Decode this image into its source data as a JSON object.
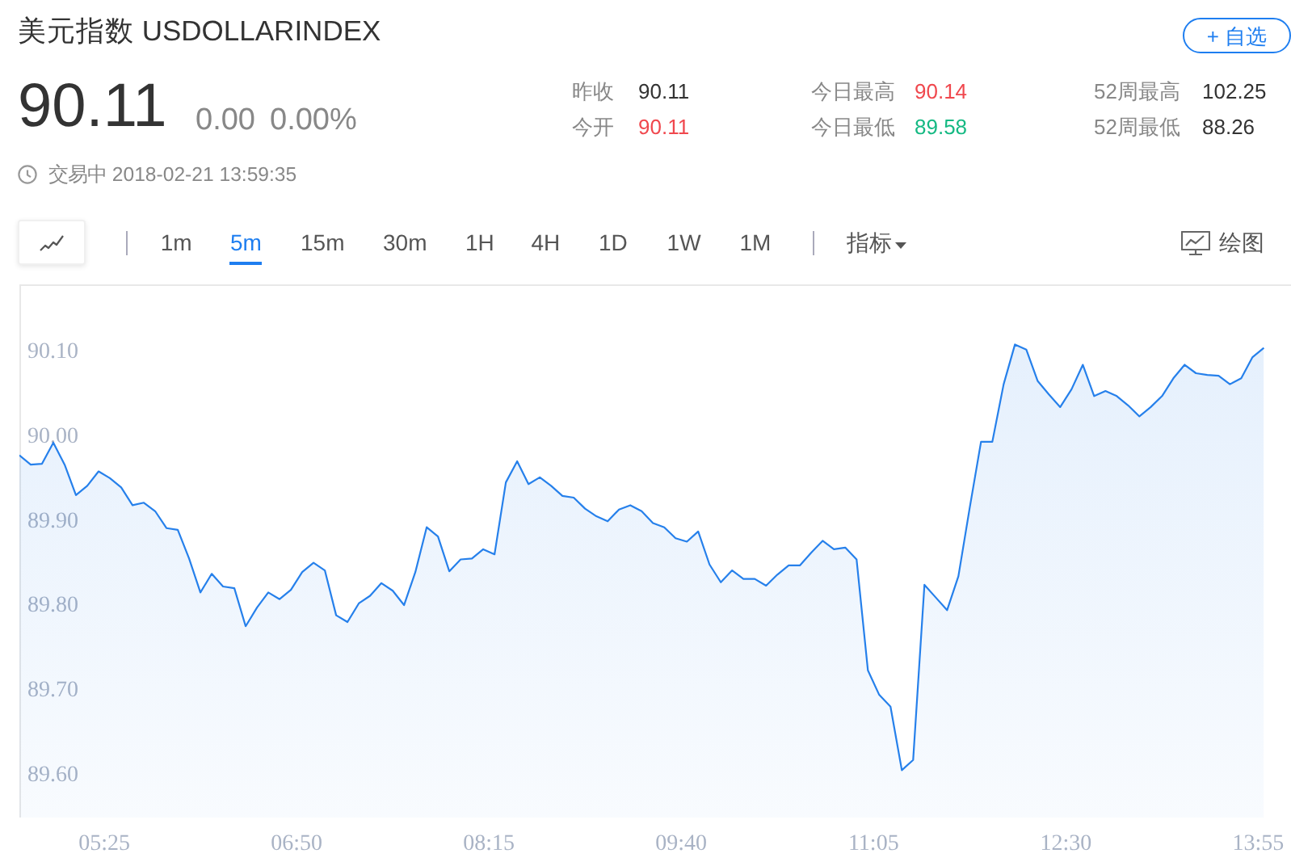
{
  "chart_data": {
    "type": "area",
    "title": "美元指数 USDOLLARINDEX",
    "annotations": [
      "90.11",
      "0.00",
      "0.00%",
      "昨收",
      "90.11",
      "今开",
      "90.11",
      "今日最高",
      "90.14",
      "今日最低",
      "89.58",
      "52周最高",
      "102.25",
      "52周最低",
      "88.26",
      "交易中 2018-02-21 13:59:35",
      "+ 自选",
      "1m",
      "5m",
      "15m",
      "30m",
      "1H",
      "4H",
      "1D",
      "1W",
      "1M",
      "指标",
      "绘图"
    ],
    "x": [
      4.7917,
      4.875,
      4.9583,
      5.0417,
      5.125,
      5.2083,
      5.2917,
      5.375,
      5.4583,
      5.5417,
      5.625,
      5.7083,
      5.7917,
      5.875,
      5.9583,
      6.0417,
      6.125,
      6.2083,
      6.2917,
      6.375,
      6.4583,
      6.5417,
      6.625,
      6.7083,
      6.7917,
      6.875,
      6.9583,
      7.0417,
      7.125,
      7.2083,
      7.2917,
      7.375,
      7.4583,
      7.5417,
      7.625,
      7.7083,
      7.7917,
      7.875,
      7.9583,
      8.0417,
      8.125,
      8.2083,
      8.2917,
      8.375,
      8.4583,
      8.5417,
      8.625,
      8.7083,
      8.7917,
      8.875,
      8.9583,
      9.0417,
      9.125,
      9.2083,
      9.2917,
      9.375,
      9.4583,
      9.5417,
      9.625,
      9.7083,
      9.7917,
      9.875,
      9.9583,
      10.0417,
      10.125,
      10.2083,
      10.2917,
      10.375,
      10.4583,
      10.5417,
      10.625,
      10.7083,
      10.7917,
      10.875,
      10.9583,
      11.0417,
      11.125,
      11.2083,
      11.2917,
      11.375,
      11.4583,
      11.5417,
      11.625,
      11.7083,
      11.7917,
      11.875,
      11.9583,
      12.0417,
      12.125,
      12.2083,
      12.2917,
      12.375,
      12.4583,
      12.5417,
      12.625,
      12.7083,
      12.7917,
      12.875,
      12.9583,
      13.0417,
      13.125,
      13.2083,
      13.2917,
      13.375,
      13.4583,
      13.5417,
      13.625,
      13.7083,
      13.7917,
      13.875,
      13.9583
    ],
    "values": [
      89.978,
      89.967,
      89.968,
      89.993,
      89.967,
      89.931,
      89.942,
      89.959,
      89.951,
      89.94,
      89.919,
      89.922,
      89.912,
      89.892,
      89.89,
      89.856,
      89.816,
      89.838,
      89.823,
      89.821,
      89.776,
      89.798,
      89.816,
      89.808,
      89.819,
      89.84,
      89.851,
      89.842,
      89.789,
      89.781,
      89.803,
      89.812,
      89.827,
      89.818,
      89.801,
      89.84,
      89.893,
      89.882,
      89.841,
      89.855,
      89.856,
      89.867,
      89.861,
      89.946,
      89.971,
      89.944,
      89.952,
      89.942,
      89.93,
      89.928,
      89.915,
      89.906,
      89.9,
      89.914,
      89.919,
      89.912,
      89.898,
      89.893,
      89.88,
      89.876,
      89.888,
      89.849,
      89.828,
      89.842,
      89.832,
      89.832,
      89.824,
      89.837,
      89.848,
      89.848,
      89.863,
      89.877,
      89.867,
      89.869,
      89.855,
      89.724,
      89.695,
      89.681,
      89.606,
      89.618,
      89.825,
      89.81,
      89.795,
      89.835,
      89.916,
      89.994,
      89.994,
      90.062,
      90.109,
      90.103,
      90.066,
      90.05,
      90.035,
      90.056,
      90.085,
      90.048,
      90.054,
      90.048,
      90.037,
      90.024,
      90.035,
      90.048,
      90.069,
      90.085,
      90.075,
      90.073,
      90.072,
      90.062,
      90.069,
      90.094,
      90.105
    ],
    "color": "#2680eb",
    "xlim": [
      4.7917,
      14.1583
    ],
    "xticks": [
      {
        "value": 5.4167,
        "label": "05:25"
      },
      {
        "value": 6.8333,
        "label": "06:50"
      },
      {
        "value": 8.25,
        "label": "08:15"
      },
      {
        "value": 9.6667,
        "label": "09:40"
      },
      {
        "value": 11.0833,
        "label": "11:05"
      },
      {
        "value": 12.5,
        "label": "12:30"
      },
      {
        "value": 13.9167,
        "label": "13:55"
      }
    ],
    "ylim": [
      89.55,
      90.18
    ],
    "yticks": [
      {
        "value": 89.6,
        "label": "89.60"
      },
      {
        "value": 89.7,
        "label": "89.70"
      },
      {
        "value": 89.8,
        "label": "89.80"
      },
      {
        "value": 89.9,
        "label": "89.90"
      },
      {
        "value": 90.0,
        "label": "90.00"
      },
      {
        "value": 90.1,
        "label": "90.10"
      }
    ]
  }
}
